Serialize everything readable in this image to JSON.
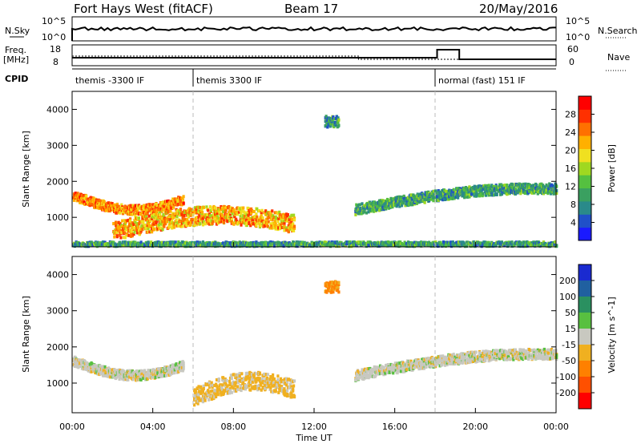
{
  "header": {
    "station": "Fort Hays West (fitACF)",
    "beam": "Beam 17",
    "date": "20/May/2016"
  },
  "strip_labels": {
    "nsky": "N.Sky",
    "nsearch": "N.Search",
    "freq": "Freq.",
    "freq_unit": "[MHz]",
    "nave": "Nave",
    "cpid": "CPID",
    "top_ticks_left": [
      "10^5",
      "10^0"
    ],
    "top_ticks_right": [
      "10^5",
      "10^0"
    ],
    "freq_ticks": [
      "18",
      "8"
    ],
    "nave_ticks": [
      "60",
      "0"
    ]
  },
  "cpid_segments": [
    {
      "label": "themis -3300 IF",
      "start_hour": 0
    },
    {
      "label": "themis 3300 IF",
      "start_hour": 6
    },
    {
      "label": "normal (fast) 151 IF",
      "start_hour": 18
    }
  ],
  "axes": {
    "xlabel": "Time UT",
    "x_ticks": [
      "00:00",
      "04:00",
      "08:00",
      "12:00",
      "16:00",
      "20:00",
      "00:00"
    ],
    "ylabel": "Slant Range [km]",
    "y_ticks": [
      "1000",
      "2000",
      "3000",
      "4000"
    ]
  },
  "chart_data": [
    {
      "type": "heatmap",
      "title": "",
      "xlabel": "Time UT",
      "ylabel": "Slant Range [km]",
      "xlim": [
        0,
        24
      ],
      "ylim": [
        180,
        4500
      ],
      "colorbar": {
        "label": "Power [dB]",
        "ticks": [
          "4",
          "8",
          "12",
          "16",
          "20",
          "24",
          "28"
        ],
        "colors": [
          "#1a1aff",
          "#2050c8",
          "#2a8a8a",
          "#3aa060",
          "#55c040",
          "#a0d820",
          "#f0e020",
          "#ffb000",
          "#ff7000",
          "#ff3000",
          "#ff0000"
        ]
      },
      "regions": [
        {
          "name": "west-lobe",
          "t0": 0,
          "t1": 5.5,
          "r_center": 1600,
          "value": 24
        },
        {
          "name": "main-band",
          "t0": 2,
          "t1": 11,
          "r_center": 900,
          "value": 22
        },
        {
          "name": "upper-patch",
          "t0": 12.5,
          "t1": 13.2,
          "r_center": 3700,
          "value": 10
        },
        {
          "name": "east-bands",
          "t0": 14,
          "t1": 24,
          "r_center": 1350,
          "value": 10
        },
        {
          "name": "near-range-ground",
          "t0": 0,
          "t1": 24,
          "r_center": 300,
          "value": 10
        }
      ]
    },
    {
      "type": "heatmap",
      "title": "",
      "xlabel": "Time UT",
      "ylabel": "Slant Range [km]",
      "xlim": [
        0,
        24
      ],
      "ylim": [
        180,
        4500
      ],
      "colorbar": {
        "label": "Velocity [m s^-1]",
        "ticks": [
          "200",
          "100",
          "50",
          "15",
          "-15",
          "-50",
          "-100",
          "-200"
        ],
        "colors": [
          "#1a2ad0",
          "#2060a0",
          "#2a9060",
          "#58c040",
          "#c8c8c0",
          "#f0b020",
          "#ff8000",
          "#ff5000",
          "#ff0000"
        ]
      },
      "regions": [
        {
          "name": "west-lobe",
          "t0": 0,
          "t1": 5.5,
          "r_center": 1600,
          "value": 0
        },
        {
          "name": "main-band",
          "t0": 6,
          "t1": 11,
          "r_center": 1000,
          "value": -30
        },
        {
          "name": "upper-patch",
          "t0": 12.5,
          "t1": 13.2,
          "r_center": 3700,
          "value": -80
        },
        {
          "name": "east-bands",
          "t0": 14,
          "t1": 24,
          "r_center": 1350,
          "value": 0
        }
      ]
    }
  ]
}
